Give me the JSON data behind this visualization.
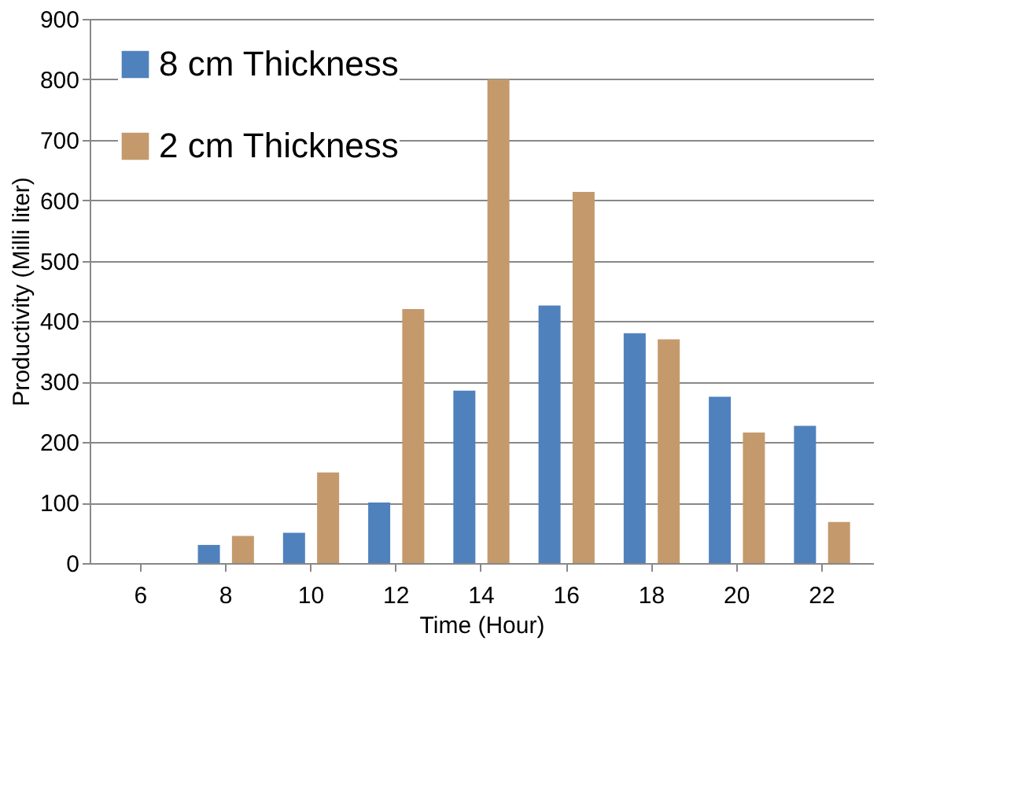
{
  "chart_data": {
    "type": "bar",
    "xlabel": "Time (Hour)",
    "ylabel": "Productivity (Milli liter)",
    "categories": [
      "6",
      "8",
      "10",
      "12",
      "14",
      "16",
      "18",
      "20",
      "22"
    ],
    "series": [
      {
        "name": "8 cm Thickness",
        "color": "#4f81bd",
        "values": [
          0,
          30,
          50,
          100,
          285,
          426,
          380,
          275,
          227
        ]
      },
      {
        "name": "2 cm Thickness",
        "color": "#c49a6c",
        "values": [
          0,
          45,
          150,
          420,
          800,
          614,
          370,
          216,
          68
        ]
      }
    ],
    "ylim": [
      0,
      900
    ],
    "yticks": [
      0,
      100,
      200,
      300,
      400,
      500,
      600,
      700,
      800,
      900
    ],
    "grid": "y",
    "legend": "top left"
  }
}
